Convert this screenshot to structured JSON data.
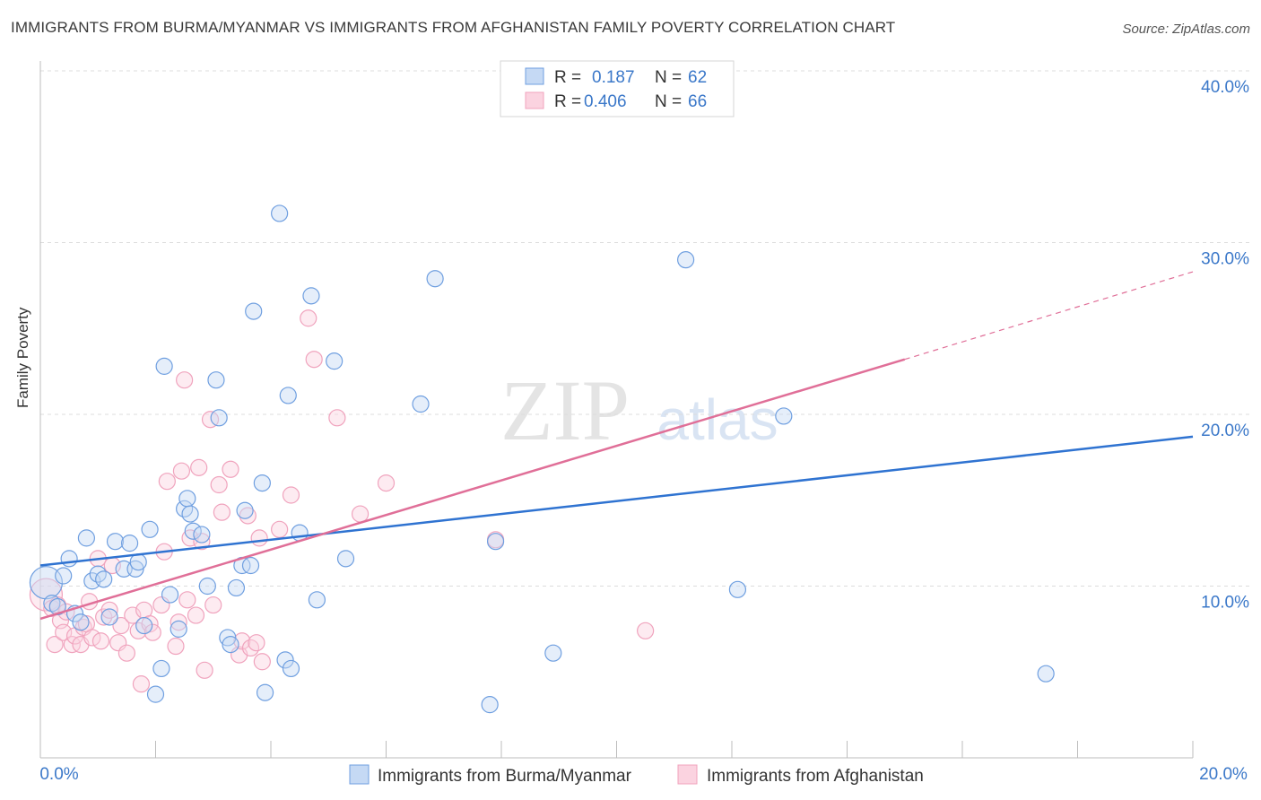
{
  "header": {
    "title": "IMMIGRANTS FROM BURMA/MYANMAR VS IMMIGRANTS FROM AFGHANISTAN FAMILY POVERTY CORRELATION CHART",
    "source": "Source: ZipAtlas.com"
  },
  "watermark": {
    "zip": "ZIP",
    "atlas": "atlas"
  },
  "colors": {
    "blue": "#6f9fe0",
    "blue_line": "#2f73d1",
    "pink": "#f0a3bd",
    "pink_line": "#e06f98",
    "axis_text": "#3b78c9"
  },
  "chart_data": {
    "type": "scatter",
    "ylabel": "Family Poverty",
    "xlabel": "",
    "xlim": [
      0,
      20
    ],
    "ylim": [
      0,
      40
    ],
    "x_ticks": [
      "0.0%",
      "20.0%"
    ],
    "y_ticks": [
      "10.0%",
      "20.0%",
      "30.0%",
      "40.0%"
    ],
    "legend_position": "top-center",
    "legend": [
      {
        "r_label": "R =",
        "r_value": "0.187",
        "n_label": "N =",
        "n_value": "62"
      },
      {
        "r_label": "R =",
        "r_value": "0.406",
        "n_label": "N =",
        "n_value": "66"
      }
    ],
    "bottom_legend": [
      "Immigrants from Burma/Myanmar",
      "Immigrants from Afghanistan"
    ],
    "series": [
      {
        "name": "Immigrants from Burma/Myanmar",
        "color": "#6f9fe0",
        "trend": {
          "x": [
            0,
            20
          ],
          "y": [
            11.2,
            18.7
          ]
        },
        "points": [
          [
            0.1,
            10.2
          ],
          [
            0.2,
            9.0
          ],
          [
            0.3,
            8.8
          ],
          [
            0.4,
            10.6
          ],
          [
            0.5,
            11.6
          ],
          [
            0.6,
            8.4
          ],
          [
            0.7,
            7.9
          ],
          [
            0.8,
            12.8
          ],
          [
            0.9,
            10.3
          ],
          [
            1.0,
            10.7
          ],
          [
            1.1,
            10.4
          ],
          [
            1.2,
            8.2
          ],
          [
            1.3,
            12.6
          ],
          [
            1.45,
            11.0
          ],
          [
            1.55,
            12.5
          ],
          [
            1.65,
            11.0
          ],
          [
            1.7,
            11.4
          ],
          [
            1.8,
            7.7
          ],
          [
            1.9,
            13.3
          ],
          [
            2.0,
            3.7
          ],
          [
            2.1,
            5.2
          ],
          [
            2.15,
            22.8
          ],
          [
            2.25,
            9.5
          ],
          [
            2.4,
            7.5
          ],
          [
            2.5,
            14.5
          ],
          [
            2.55,
            15.1
          ],
          [
            2.6,
            14.2
          ],
          [
            2.65,
            13.2
          ],
          [
            2.8,
            13.0
          ],
          [
            2.9,
            10.0
          ],
          [
            3.05,
            22.0
          ],
          [
            3.1,
            19.8
          ],
          [
            3.25,
            7.0
          ],
          [
            3.3,
            6.6
          ],
          [
            3.4,
            9.9
          ],
          [
            3.5,
            11.2
          ],
          [
            3.55,
            14.4
          ],
          [
            3.65,
            11.2
          ],
          [
            3.7,
            26.0
          ],
          [
            3.85,
            16.0
          ],
          [
            3.9,
            3.8
          ],
          [
            4.15,
            31.7
          ],
          [
            4.25,
            5.7
          ],
          [
            4.3,
            21.1
          ],
          [
            4.35,
            5.2
          ],
          [
            4.5,
            13.1
          ],
          [
            4.7,
            26.9
          ],
          [
            4.8,
            9.2
          ],
          [
            5.1,
            23.1
          ],
          [
            5.3,
            11.6
          ],
          [
            6.6,
            20.6
          ],
          [
            6.85,
            27.9
          ],
          [
            7.8,
            3.1
          ],
          [
            7.9,
            12.6
          ],
          [
            8.9,
            6.1
          ],
          [
            11.2,
            29.0
          ],
          [
            12.1,
            9.8
          ],
          [
            12.9,
            19.9
          ],
          [
            17.45,
            4.9
          ]
        ],
        "sizes_note": "one large point at x=0.1, y=10.2"
      },
      {
        "name": "Immigrants from Afghanistan",
        "color": "#f0a3bd",
        "trend": {
          "x": [
            0,
            15
          ],
          "y": [
            8.1,
            23.2
          ]
        },
        "trend_dashed_extension": {
          "x": [
            15,
            20
          ],
          "y": [
            23.2,
            28.3
          ]
        },
        "points": [
          [
            0.1,
            9.5
          ],
          [
            0.2,
            8.7
          ],
          [
            0.25,
            6.6
          ],
          [
            0.3,
            8.9
          ],
          [
            0.35,
            8.0
          ],
          [
            0.4,
            7.3
          ],
          [
            0.45,
            8.5
          ],
          [
            0.55,
            6.6
          ],
          [
            0.6,
            7.1
          ],
          [
            0.7,
            6.6
          ],
          [
            0.75,
            7.6
          ],
          [
            0.8,
            7.8
          ],
          [
            0.85,
            9.1
          ],
          [
            0.9,
            7.0
          ],
          [
            1.0,
            11.6
          ],
          [
            1.05,
            6.8
          ],
          [
            1.1,
            8.2
          ],
          [
            1.2,
            8.6
          ],
          [
            1.25,
            11.2
          ],
          [
            1.35,
            6.7
          ],
          [
            1.4,
            7.7
          ],
          [
            1.5,
            6.1
          ],
          [
            1.6,
            8.3
          ],
          [
            1.7,
            7.4
          ],
          [
            1.75,
            4.3
          ],
          [
            1.8,
            8.6
          ],
          [
            1.9,
            7.8
          ],
          [
            1.95,
            7.3
          ],
          [
            2.1,
            8.9
          ],
          [
            2.15,
            12.0
          ],
          [
            2.2,
            16.1
          ],
          [
            2.35,
            6.5
          ],
          [
            2.4,
            7.9
          ],
          [
            2.45,
            16.7
          ],
          [
            2.5,
            22.0
          ],
          [
            2.55,
            9.2
          ],
          [
            2.6,
            12.8
          ],
          [
            2.7,
            8.3
          ],
          [
            2.75,
            16.9
          ],
          [
            2.8,
            12.6
          ],
          [
            2.85,
            5.1
          ],
          [
            2.95,
            19.7
          ],
          [
            3.0,
            8.9
          ],
          [
            3.1,
            15.9
          ],
          [
            3.15,
            14.3
          ],
          [
            3.3,
            16.8
          ],
          [
            3.45,
            6.0
          ],
          [
            3.5,
            6.8
          ],
          [
            3.6,
            14.1
          ],
          [
            3.65,
            6.4
          ],
          [
            3.75,
            6.7
          ],
          [
            3.8,
            12.8
          ],
          [
            3.85,
            5.6
          ],
          [
            4.15,
            13.3
          ],
          [
            4.35,
            15.3
          ],
          [
            4.65,
            25.6
          ],
          [
            4.75,
            23.2
          ],
          [
            5.15,
            19.8
          ],
          [
            5.55,
            14.2
          ],
          [
            6.0,
            16.0
          ],
          [
            7.9,
            12.7
          ],
          [
            10.5,
            7.4
          ]
        ],
        "sizes_note": "one large point at x=0.1, y=9.5"
      }
    ]
  }
}
